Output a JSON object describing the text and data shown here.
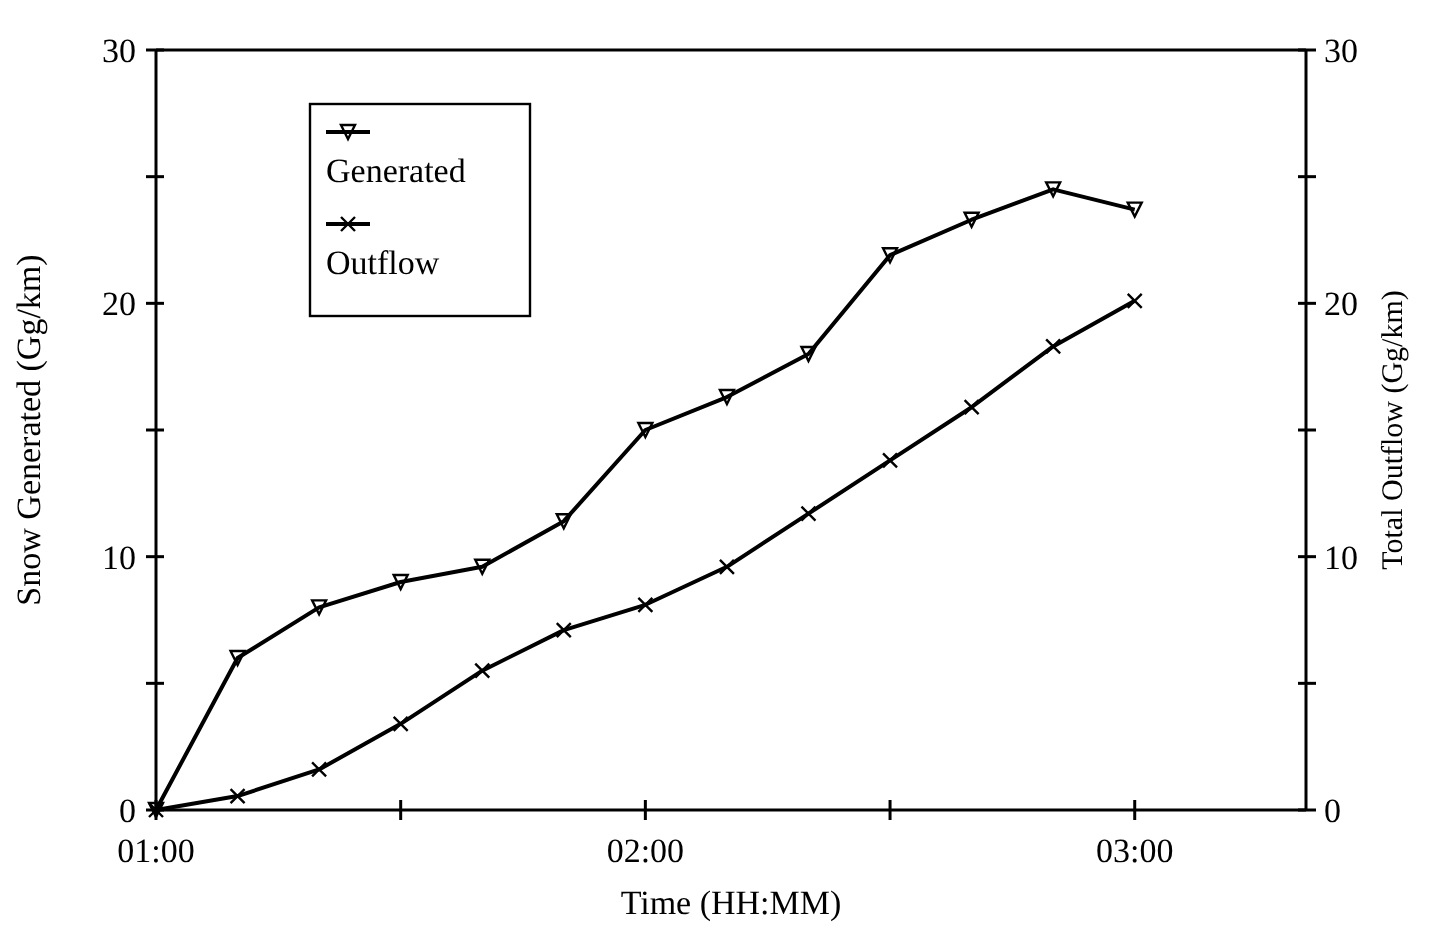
{
  "chart_data": {
    "type": "line",
    "xlabel": "Time (HH:MM)",
    "ylabel": "Snow Generated (Gg/km)",
    "y2label": "Total Outflow (Gg/km)",
    "xlim": [
      1,
      3.35
    ],
    "xticks": [
      {
        "value": 1,
        "label": "01:00"
      },
      {
        "value": 1.5,
        "label": null
      },
      {
        "value": 2,
        "label": "02:00"
      },
      {
        "value": 2.5,
        "label": null
      },
      {
        "value": 3,
        "label": "03:00"
      }
    ],
    "ylim": [
      0,
      30
    ],
    "yticks": [
      0,
      {
        "value": 5,
        "label": null
      },
      10,
      {
        "value": 15,
        "label": null
      },
      20,
      {
        "value": 25,
        "label": null
      },
      30
    ],
    "y2lim": [
      0,
      30
    ],
    "y2ticks": [
      0,
      {
        "value": 5,
        "label": null
      },
      10,
      {
        "value": 15,
        "label": null
      },
      20,
      {
        "value": 25,
        "label": null
      },
      30
    ],
    "grid": false,
    "legend": "top left",
    "line_style": "solid",
    "series": [
      {
        "name": "Generated",
        "color": "#000000",
        "marker": "triangle",
        "x": [
          1,
          1.1667,
          1.3333,
          1.5,
          1.6667,
          1.8333,
          2,
          2.1667,
          2.3333,
          2.5,
          2.6667,
          2.8333,
          3
        ],
        "values": [
          0,
          6.0,
          8.0,
          9.0,
          9.6,
          11.4,
          15.0,
          16.3,
          18.0,
          21.9,
          23.3,
          24.5,
          23.7
        ]
      },
      {
        "name": "Outflow",
        "color": "#000000",
        "marker": "cross",
        "x": [
          1,
          1.1667,
          1.3333,
          1.5,
          1.6667,
          1.8333,
          2,
          2.1667,
          2.3333,
          2.5,
          2.6667,
          2.8333,
          3
        ],
        "values": [
          0,
          0.55,
          1.6,
          3.4,
          5.5,
          7.1,
          8.1,
          9.6,
          11.7,
          13.8,
          15.9,
          18.3,
          20.1
        ]
      }
    ]
  }
}
